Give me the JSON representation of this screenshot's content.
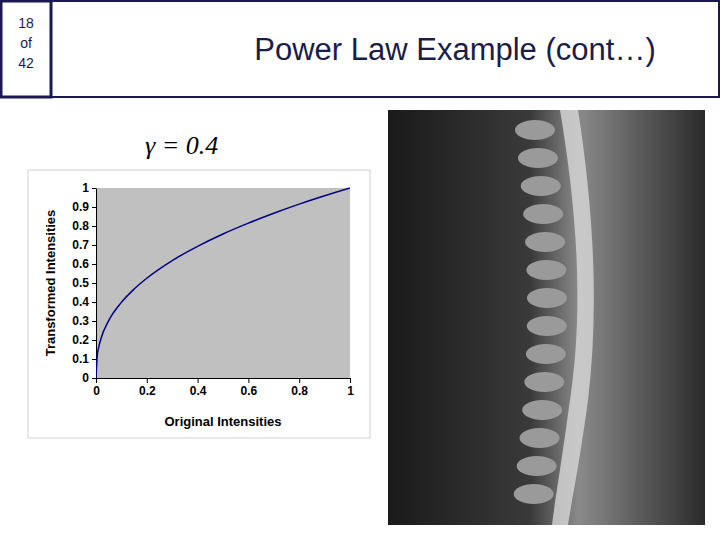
{
  "slide": {
    "page": [
      "18",
      "of",
      "42"
    ],
    "title": "Power Law Example (cont…)"
  },
  "chart_data": {
    "type": "line",
    "title": "γ = 0.4",
    "x_label": "Original Intensities",
    "y_label": "Transformed Intensities",
    "x": [
      0,
      0.005,
      0.01,
      0.02,
      0.05,
      0.1,
      0.15,
      0.2,
      0.3,
      0.4,
      0.5,
      0.6,
      0.7,
      0.8,
      0.9,
      1
    ],
    "values": [
      0,
      0.12,
      0.158,
      0.209,
      0.302,
      0.398,
      0.468,
      0.525,
      0.618,
      0.693,
      0.758,
      0.815,
      0.867,
      0.915,
      0.959,
      1
    ],
    "color": "#000080",
    "xlim": [
      0,
      1
    ],
    "ylim": [
      0,
      1
    ],
    "xticks": [
      0,
      0.2,
      0.4,
      0.6,
      0.8,
      1
    ],
    "yticks": [
      0,
      0.1,
      0.2,
      0.3,
      0.4,
      0.5,
      0.6,
      0.7,
      0.8,
      0.9,
      1
    ],
    "grid": false
  }
}
